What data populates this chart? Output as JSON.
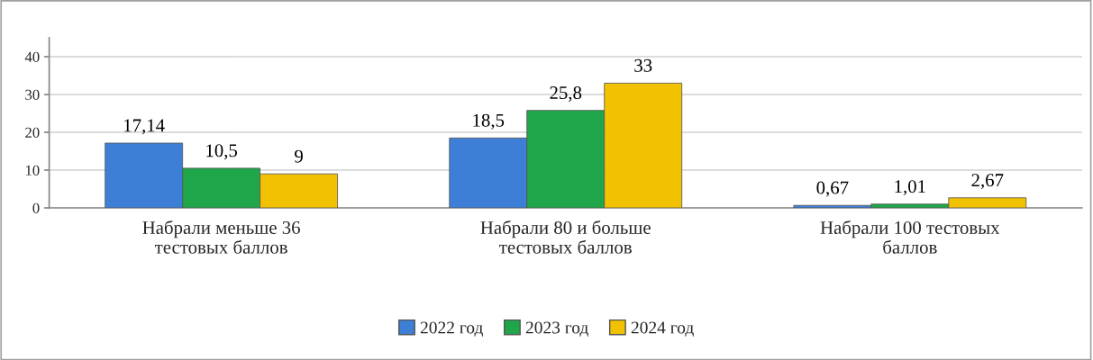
{
  "chart_data": {
    "type": "bar",
    "categories": [
      "Набрали меньше 36\nтестовых баллов",
      "Набрали 80 и больше\nтестовых баллов",
      "Набрали 100 тестовых\nбаллов"
    ],
    "series": [
      {
        "name": "2022 год",
        "color": "#3d7fd6",
        "values": [
          17.14,
          18.5,
          0.67
        ],
        "value_labels": [
          "17,14",
          "18,5",
          "0,67"
        ]
      },
      {
        "name": "2023 год",
        "color": "#1fa64a",
        "values": [
          10.5,
          25.8,
          1.01
        ],
        "value_labels": [
          "10,5",
          "25,8",
          "1,01"
        ]
      },
      {
        "name": "2024 год",
        "color": "#f2c200",
        "values": [
          9,
          33,
          2.67
        ],
        "value_labels": [
          "9",
          "33",
          "2,67"
        ]
      }
    ],
    "ylim": [
      0,
      45
    ],
    "yticks": [
      0,
      10,
      20,
      30,
      40
    ],
    "grid": "y",
    "legend": "bottom"
  }
}
